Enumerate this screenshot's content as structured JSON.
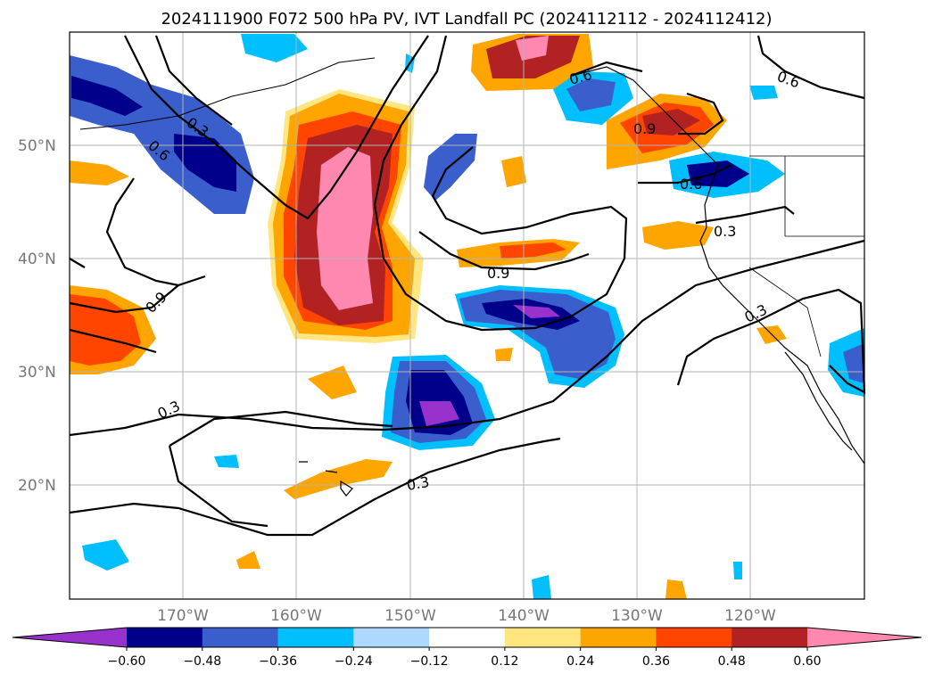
{
  "title": "2024111900 F072 500 hPa PV, IVT Landfall PC (2024112112 - 2024112412)",
  "lat_labels": [
    "50°N",
    "40°N",
    "30°N",
    "20°N"
  ],
  "lon_labels": [
    "170°W",
    "160°W",
    "150°W",
    "140°W",
    "130°W",
    "120°W"
  ],
  "contour_labels": [
    "0.3",
    "0.6",
    "0.9",
    "0.3",
    "0.6",
    "0.9",
    "0.6",
    "0.3",
    "0.3",
    "0.3",
    "0.6",
    "0.9"
  ],
  "colorbar": {
    "ticks": [
      "−0.60",
      "−0.48",
      "−0.36",
      "−0.24",
      "−0.12",
      "0.12",
      "0.24",
      "0.36",
      "0.48",
      "0.60"
    ],
    "colors": [
      "#9932cc",
      "#00008b",
      "#3a5fcd",
      "#00bfff",
      "#add8ff",
      "#ffffff",
      "#ffe680",
      "#ffa500",
      "#ff4500",
      "#b22222",
      "#ff88b0"
    ]
  },
  "map_extent": {
    "lon": [
      -180,
      -110
    ],
    "lat": [
      10,
      60
    ]
  }
}
